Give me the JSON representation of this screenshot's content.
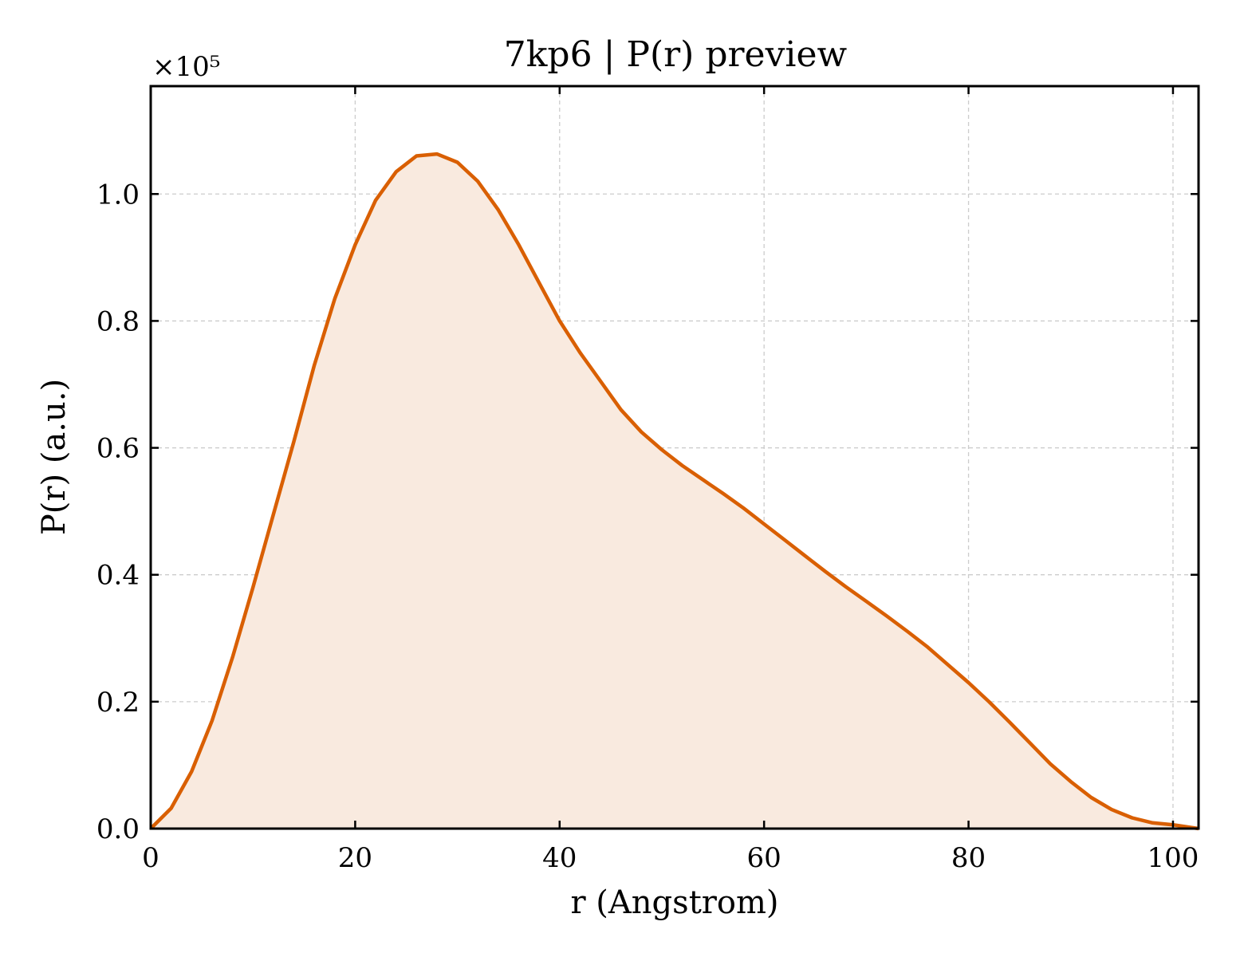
{
  "chart_data": {
    "type": "area",
    "title": "7kp6 | P(r) preview",
    "xlabel": "r (Angstrom)",
    "ylabel": "P(r) (a.u.)",
    "y_multiplier_label": "×10⁵",
    "y_scale_factor": 100000,
    "xlim": [
      0,
      102.5
    ],
    "ylim": [
      0,
      117000
    ],
    "x_ticks": [
      0,
      20,
      40,
      60,
      80,
      100
    ],
    "x_tick_labels": [
      "0",
      "20",
      "40",
      "60",
      "80",
      "100"
    ],
    "y_ticks": [
      0,
      20000,
      40000,
      60000,
      80000,
      100000
    ],
    "y_tick_labels": [
      "0.0",
      "0.2",
      "0.4",
      "0.6",
      "0.8",
      "1.0"
    ],
    "grid": true,
    "tick_direction": "in",
    "colors": {
      "line": "#d95f02",
      "fill": "#f9eadf"
    },
    "series": [
      {
        "x": [
          0,
          2,
          4,
          6,
          8,
          10,
          12,
          14,
          16,
          18,
          20,
          22,
          24,
          26,
          28,
          30,
          32,
          34,
          36,
          38,
          40,
          42,
          44,
          46,
          48,
          50,
          52,
          54,
          56,
          58,
          60,
          62,
          64,
          66,
          68,
          70,
          72,
          74,
          76,
          78,
          80,
          82,
          84,
          86,
          88,
          90,
          92,
          94,
          96,
          98,
          100,
          102.5
        ],
        "y": [
          0,
          3200,
          9000,
          17000,
          27000,
          38000,
          49500,
          61000,
          73000,
          83500,
          92000,
          99000,
          103500,
          106000,
          106300,
          105000,
          102000,
          97500,
          92000,
          86000,
          80000,
          75000,
          70500,
          66000,
          62500,
          59700,
          57200,
          55000,
          52800,
          50500,
          48000,
          45500,
          43000,
          40500,
          38100,
          35800,
          33500,
          31100,
          28600,
          25800,
          23000,
          20000,
          16800,
          13500,
          10200,
          7400,
          4900,
          3000,
          1700,
          900,
          600,
          0
        ]
      }
    ]
  }
}
